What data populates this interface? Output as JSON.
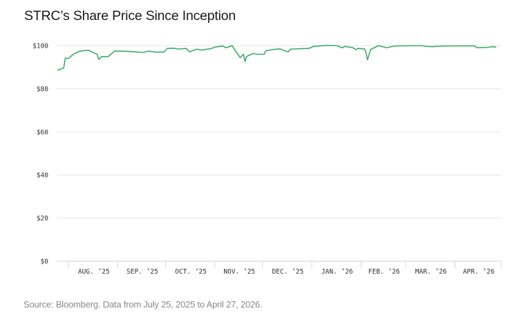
{
  "title": "STRC’s Share Price Since Inception",
  "source": "Source: Bloomberg. Data from July 25, 2025 to April 27, 2026.",
  "chart_data": {
    "type": "line",
    "title": "STRC’s Share Price Since Inception",
    "xlabel": "",
    "ylabel": "",
    "ylim": [
      0,
      100
    ],
    "xlim": [
      "2025-07-25",
      "2026-04-27"
    ],
    "grid": true,
    "line_color": "#3daa6c",
    "y_ticks": [
      {
        "value": 0,
        "label": "$0"
      },
      {
        "value": 20,
        "label": "$20"
      },
      {
        "value": 40,
        "label": "$40"
      },
      {
        "value": 60,
        "label": "$60"
      },
      {
        "value": 80,
        "label": "$80"
      },
      {
        "value": 100,
        "label": "$100"
      }
    ],
    "x_ticks": [
      {
        "label": "AUG. ’25",
        "start": "2025-08-01",
        "end": "2025-09-01"
      },
      {
        "label": "SEP. ’25",
        "start": "2025-09-01",
        "end": "2025-10-01"
      },
      {
        "label": "OCT. ’25",
        "start": "2025-10-01",
        "end": "2025-11-01"
      },
      {
        "label": "NOV. ’25",
        "start": "2025-11-01",
        "end": "2025-12-01"
      },
      {
        "label": "DEC. ’25",
        "start": "2025-12-01",
        "end": "2026-01-01"
      },
      {
        "label": "JAN. ’26",
        "start": "2026-01-01",
        "end": "2026-02-01"
      },
      {
        "label": "FEB. ’26",
        "start": "2026-02-01",
        "end": "2026-03-01"
      },
      {
        "label": "MAR. ’26",
        "start": "2026-03-01",
        "end": "2026-04-01"
      },
      {
        "label": "APR. ’26",
        "start": "2026-04-01",
        "end": "2026-05-01"
      }
    ],
    "series": [
      {
        "points": [
          [
            "2025-07-25",
            88.6
          ],
          [
            "2025-07-29",
            89.6
          ],
          [
            "2025-07-30",
            94.2
          ],
          [
            "2025-08-01",
            94.0
          ],
          [
            "2025-08-04",
            96.0
          ],
          [
            "2025-08-08",
            97.4
          ],
          [
            "2025-08-12",
            97.8
          ],
          [
            "2025-08-14",
            97.8
          ],
          [
            "2025-08-17",
            96.6
          ],
          [
            "2025-08-19",
            96.0
          ],
          [
            "2025-08-20",
            93.6
          ],
          [
            "2025-08-22",
            94.9
          ],
          [
            "2025-08-26",
            94.9
          ],
          [
            "2025-08-30",
            97.5
          ],
          [
            "2025-09-04",
            97.4
          ],
          [
            "2025-09-10",
            97.2
          ],
          [
            "2025-09-17",
            96.8
          ],
          [
            "2025-09-20",
            97.4
          ],
          [
            "2025-09-25",
            97.0
          ],
          [
            "2025-09-30",
            97.0
          ],
          [
            "2025-10-02",
            98.7
          ],
          [
            "2025-10-06",
            98.8
          ],
          [
            "2025-10-09",
            98.4
          ],
          [
            "2025-10-14",
            98.7
          ],
          [
            "2025-10-16",
            97.1
          ],
          [
            "2025-10-21",
            98.4
          ],
          [
            "2025-10-23",
            97.9
          ],
          [
            "2025-10-29",
            98.5
          ],
          [
            "2025-11-01",
            99.3
          ],
          [
            "2025-11-06",
            99.8
          ],
          [
            "2025-11-08",
            99.0
          ],
          [
            "2025-11-12",
            99.9
          ],
          [
            "2025-11-13",
            98.7
          ],
          [
            "2025-11-17",
            94.4
          ],
          [
            "2025-11-19",
            96.0
          ],
          [
            "2025-11-20",
            92.6
          ],
          [
            "2025-11-21",
            95.0
          ],
          [
            "2025-11-25",
            96.3
          ],
          [
            "2025-11-28",
            96.0
          ],
          [
            "2025-12-02",
            96.0
          ],
          [
            "2025-12-03",
            97.6
          ],
          [
            "2025-12-08",
            98.2
          ],
          [
            "2025-12-12",
            98.5
          ],
          [
            "2025-12-15",
            97.6
          ],
          [
            "2025-12-17",
            97.1
          ],
          [
            "2025-12-19",
            98.4
          ],
          [
            "2025-12-30",
            98.7
          ],
          [
            "2026-01-02",
            99.6
          ],
          [
            "2026-01-11",
            100.1
          ],
          [
            "2026-01-17",
            100.0
          ],
          [
            "2026-01-20",
            99.0
          ],
          [
            "2026-01-22",
            99.6
          ],
          [
            "2026-01-27",
            99.0
          ],
          [
            "2026-01-29",
            98.1
          ],
          [
            "2026-01-30",
            98.7
          ],
          [
            "2026-02-03",
            98.5
          ],
          [
            "2026-02-04",
            97.1
          ],
          [
            "2026-02-05",
            93.4
          ],
          [
            "2026-02-07",
            98.2
          ],
          [
            "2026-02-12",
            100.0
          ],
          [
            "2026-02-17",
            99.0
          ],
          [
            "2026-02-22",
            99.8
          ],
          [
            "2026-03-11",
            100.0
          ],
          [
            "2026-03-14",
            99.6
          ],
          [
            "2026-03-18",
            99.5
          ],
          [
            "2026-03-24",
            99.8
          ],
          [
            "2026-04-13",
            99.9
          ],
          [
            "2026-04-15",
            99.0
          ],
          [
            "2026-04-22",
            99.2
          ],
          [
            "2026-04-24",
            99.5
          ],
          [
            "2026-04-27",
            99.3
          ]
        ]
      }
    ]
  }
}
